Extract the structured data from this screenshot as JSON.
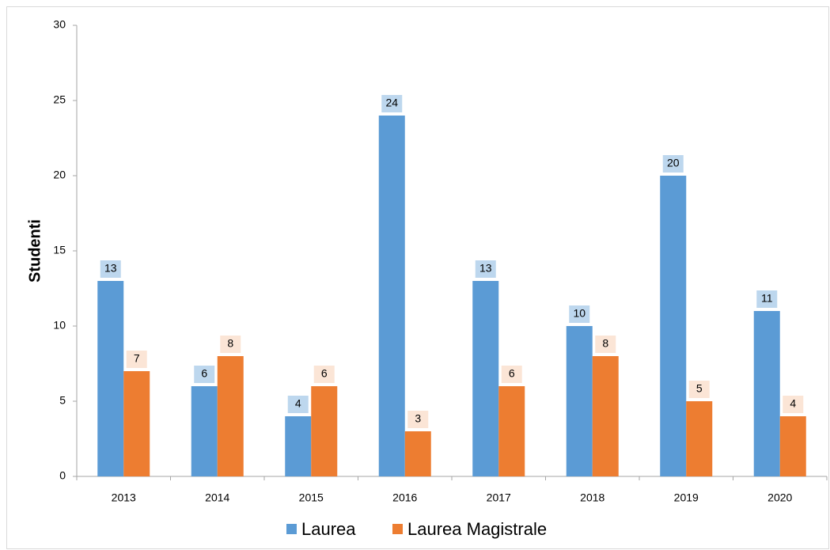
{
  "chart_data": {
    "type": "bar",
    "y_label": "Studenti",
    "categories": [
      "2013",
      "2014",
      "2015",
      "2016",
      "2017",
      "2018",
      "2019",
      "2020"
    ],
    "series": [
      {
        "name": "Laurea",
        "color": "#5b9bd5",
        "label_bg": "#bdd7ee",
        "values": [
          13,
          6,
          4,
          24,
          13,
          10,
          20,
          11
        ]
      },
      {
        "name": "Laurea Magistrale",
        "color": "#ed7d31",
        "label_bg": "#fbe5d6",
        "values": [
          7,
          8,
          6,
          3,
          6,
          8,
          5,
          4
        ]
      }
    ],
    "ylim": [
      0,
      30
    ],
    "yticks": [
      0,
      5,
      10,
      15,
      20,
      25,
      30
    ],
    "grid": false,
    "legend": "bottom"
  }
}
